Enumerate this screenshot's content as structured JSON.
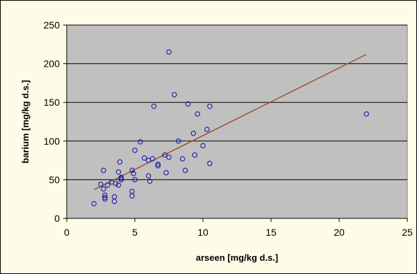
{
  "colors": {
    "background": "#fefbe6",
    "plot_area": "#c0c0c0",
    "gridline": "#000000",
    "marker": "#1a1aa6",
    "trendline": "#a0522d"
  },
  "chart_data": {
    "type": "scatter",
    "title": "",
    "xlabel": "arseen [mg/kg d.s.]",
    "ylabel": "barium [mg/kg d.s.]",
    "xlim": [
      0,
      25
    ],
    "ylim": [
      0,
      250
    ],
    "x_ticks": [
      0,
      5,
      10,
      15,
      20,
      25
    ],
    "y_ticks": [
      0,
      50,
      100,
      150,
      200,
      250
    ],
    "grid": "horizontal",
    "legend": "none",
    "marker": "open-circle",
    "series": [
      {
        "points": [
          [
            2.0,
            19
          ],
          [
            2.5,
            44
          ],
          [
            2.7,
            62
          ],
          [
            2.7,
            38
          ],
          [
            2.8,
            30
          ],
          [
            2.8,
            25
          ],
          [
            2.8,
            27
          ],
          [
            3.0,
            43
          ],
          [
            3.3,
            47
          ],
          [
            3.5,
            22
          ],
          [
            3.5,
            28
          ],
          [
            3.6,
            45
          ],
          [
            3.8,
            60
          ],
          [
            3.8,
            43
          ],
          [
            3.9,
            73
          ],
          [
            4.0,
            52
          ],
          [
            4.0,
            50
          ],
          [
            4.0,
            53
          ],
          [
            4.8,
            62
          ],
          [
            4.8,
            35
          ],
          [
            4.8,
            29
          ],
          [
            4.9,
            58
          ],
          [
            5.0,
            88
          ],
          [
            5.0,
            50
          ],
          [
            5.4,
            99
          ],
          [
            5.7,
            78
          ],
          [
            6.0,
            55
          ],
          [
            6.0,
            75
          ],
          [
            6.1,
            48
          ],
          [
            6.3,
            77
          ],
          [
            6.4,
            145
          ],
          [
            6.7,
            70
          ],
          [
            6.7,
            68
          ],
          [
            7.2,
            82
          ],
          [
            7.3,
            59
          ],
          [
            7.5,
            79
          ],
          [
            7.5,
            215
          ],
          [
            7.9,
            160
          ],
          [
            8.2,
            100
          ],
          [
            8.5,
            77
          ],
          [
            8.7,
            62
          ],
          [
            8.9,
            148
          ],
          [
            9.3,
            110
          ],
          [
            9.4,
            82
          ],
          [
            9.6,
            135
          ],
          [
            10.0,
            94
          ],
          [
            10.3,
            115
          ],
          [
            10.5,
            71
          ],
          [
            10.5,
            145
          ],
          [
            22.0,
            135
          ]
        ]
      }
    ],
    "trendline": {
      "x": [
        2.0,
        22.0
      ],
      "y": [
        37,
        212
      ]
    }
  }
}
